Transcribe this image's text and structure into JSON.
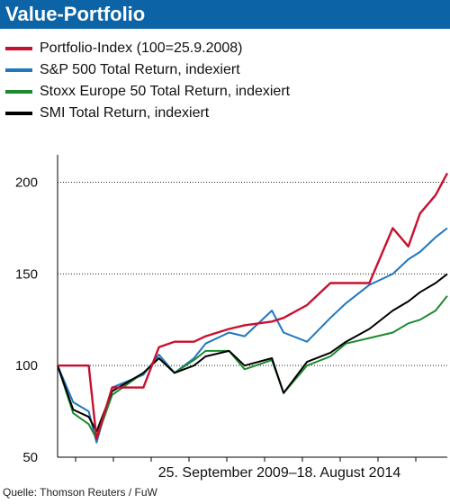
{
  "header": {
    "title": "Value-Portfolio"
  },
  "legend": [
    {
      "label": "Portfolio-Index (100=25.9.2008)",
      "color": "#c8102e"
    },
    {
      "label": "S&P 500 Total Return, indexiert",
      "color": "#1f77c0"
    },
    {
      "label": "Stoxx Europe 50 Total Return, indexiert",
      "color": "#1b8a2e"
    },
    {
      "label": "SMI Total Return, indexiert",
      "color": "#000000"
    }
  ],
  "footer": {
    "source": "Quelle: Thomson Reuters / FuW"
  },
  "chart_data": {
    "type": "line",
    "xlabel": "25. September 2009–18. August 2014",
    "ylabel": "",
    "ylim": [
      50,
      215
    ],
    "yticks": [
      50,
      100,
      150,
      200
    ],
    "grid": "horizontal dotted",
    "x": [
      0,
      0.04,
      0.08,
      0.1,
      0.14,
      0.22,
      0.26,
      0.3,
      0.35,
      0.38,
      0.44,
      0.48,
      0.55,
      0.58,
      0.64,
      0.7,
      0.74,
      0.8,
      0.86,
      0.9,
      0.93,
      0.97,
      1.0
    ],
    "series": [
      {
        "name": "Portfolio-Index (100=25.9.2008)",
        "color": "#c8102e",
        "values": [
          100,
          100,
          100,
          60,
          88,
          88,
          110,
          113,
          113,
          116,
          120,
          122,
          124,
          126,
          133,
          145,
          145,
          145,
          175,
          165,
          183,
          193,
          205
        ]
      },
      {
        "name": "S&P 500 Total Return, indexiert",
        "color": "#1f77c0",
        "values": [
          100,
          80,
          75,
          58,
          88,
          95,
          106,
          96,
          104,
          112,
          118,
          116,
          130,
          118,
          113,
          126,
          134,
          144,
          150,
          158,
          162,
          170,
          175
        ]
      },
      {
        "name": "Stoxx Europe 50 Total Return, indexiert",
        "color": "#1b8a2e",
        "values": [
          100,
          74,
          68,
          60,
          84,
          96,
          104,
          96,
          103,
          108,
          108,
          98,
          103,
          85,
          100,
          105,
          112,
          115,
          118,
          123,
          125,
          130,
          138
        ]
      },
      {
        "name": "SMI Total Return, indexiert",
        "color": "#000000",
        "values": [
          100,
          76,
          72,
          64,
          86,
          96,
          104,
          96,
          100,
          105,
          108,
          100,
          104,
          85,
          102,
          107,
          113,
          120,
          130,
          135,
          140,
          145,
          150
        ]
      }
    ]
  }
}
